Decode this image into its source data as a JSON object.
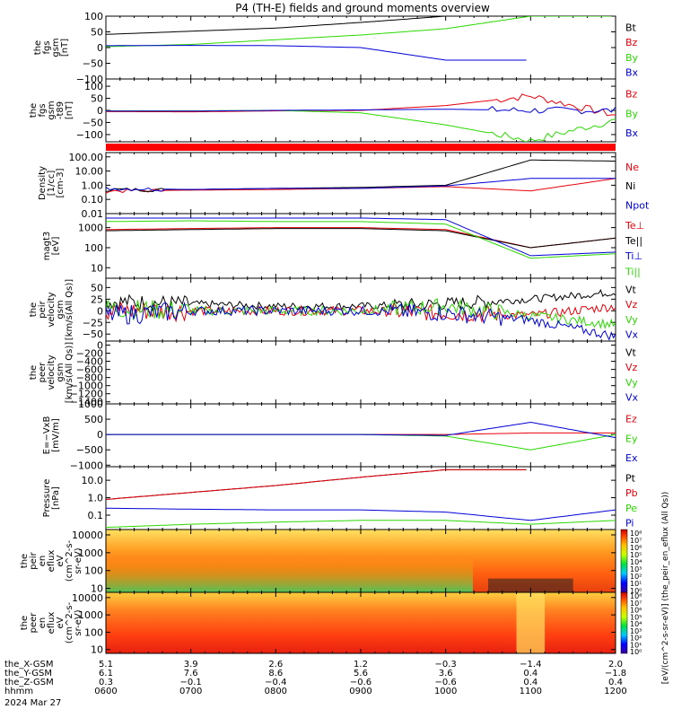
{
  "title": "P4 (TH-E) fields and ground moments overview",
  "colors": {
    "black": "#000000",
    "red": "#e8000b",
    "green": "#2ad900",
    "blue": "#0000d8"
  },
  "panels": [
    {
      "id": "bgsm",
      "ylabel": [
        "the",
        "fgs",
        "gsm",
        "[nT]"
      ],
      "ticks": [
        "100",
        "50",
        "0",
        "−50",
        "−100"
      ],
      "tick_values": [
        100,
        50,
        0,
        -50,
        -100
      ],
      "ylim": [
        -100,
        100
      ],
      "scale": "linear",
      "legend": [
        {
          "label": "Bt",
          "color": "black"
        },
        {
          "label": "Bz",
          "color": "red"
        },
        {
          "label": "By",
          "color": "green"
        },
        {
          "label": "Bx",
          "color": "blue"
        }
      ]
    },
    {
      "id": "bgsm_dc",
      "ylabel": [
        "the",
        "fgs",
        "gsm",
        "-t89",
        "[nT]"
      ],
      "ticks": [
        "100",
        "50",
        "0",
        "−50",
        "−100"
      ],
      "tick_values": [
        100,
        50,
        0,
        -50,
        -100
      ],
      "ylim": [
        -130,
        130
      ],
      "scale": "linear",
      "legend": [
        {
          "label": "Bz",
          "color": "red"
        },
        {
          "label": "By",
          "color": "green"
        },
        {
          "label": "Bx",
          "color": "blue"
        }
      ]
    },
    {
      "id": "density",
      "ylabel": [
        "Density",
        "[1/cc]",
        "[cm-3]"
      ],
      "ticks": [
        "100.00",
        "10.00",
        "1.00",
        "0.10",
        "0.01"
      ],
      "tick_values": [
        100,
        10,
        1,
        0.1,
        0.01
      ],
      "ylim": [
        0.01,
        200
      ],
      "scale": "log",
      "legend": [
        {
          "label": "Ne",
          "color": "red"
        },
        {
          "label": "Ni",
          "color": "black"
        },
        {
          "label": "Npot",
          "color": "blue"
        }
      ]
    },
    {
      "id": "temp",
      "ylabel": [
        "magt3",
        "[eV]"
      ],
      "ticks": [
        "1000",
        "100",
        "10"
      ],
      "tick_values": [
        1000,
        100,
        10
      ],
      "ylim": [
        3,
        5000
      ],
      "scale": "log",
      "legend": [
        {
          "label": "Te⊥",
          "color": "red"
        },
        {
          "label": "Te||",
          "color": "black"
        },
        {
          "label": "Ti⊥",
          "color": "blue"
        },
        {
          "label": "Ti||",
          "color": "green"
        }
      ]
    },
    {
      "id": "vpeir",
      "ylabel": [
        "the",
        "peir",
        "velocity",
        "gsm",
        "[km/s(All Qs)]"
      ],
      "ticks": [
        "50",
        "25",
        "0",
        "−25",
        "−50"
      ],
      "tick_values": [
        50,
        25,
        0,
        -25,
        -50
      ],
      "ylim": [
        -65,
        70
      ],
      "scale": "linear",
      "legend": [
        {
          "label": "Vt",
          "color": "black"
        },
        {
          "label": "Vz",
          "color": "red"
        },
        {
          "label": "Vy",
          "color": "green"
        },
        {
          "label": "Vx",
          "color": "blue"
        }
      ]
    },
    {
      "id": "vpeer",
      "ylabel": [
        "the",
        "peer",
        "velocity",
        "gsm",
        "[km/s(All Qs)]"
      ],
      "ticks": [
        "0",
        "−200",
        "−400",
        "−600",
        "−800",
        "−1000",
        "−1200",
        "−1400"
      ],
      "tick_values": [
        0,
        -200,
        -400,
        -600,
        -800,
        -1000,
        -1200,
        -1400
      ],
      "ylim": [
        -1450,
        100
      ],
      "scale": "linear",
      "legend": [
        {
          "label": "Vt",
          "color": "black"
        },
        {
          "label": "Vz",
          "color": "red"
        },
        {
          "label": "Vy",
          "color": "green"
        },
        {
          "label": "Vx",
          "color": "blue"
        }
      ]
    },
    {
      "id": "efield",
      "ylabel": [
        "E=−VxB",
        "[mV/m]"
      ],
      "ticks": [
        "1000",
        "500",
        "0",
        "−500",
        "−1000"
      ],
      "tick_values": [
        1000,
        500,
        0,
        -500,
        -1000
      ],
      "ylim": [
        -1050,
        1000
      ],
      "scale": "linear",
      "legend": [
        {
          "label": "Ez",
          "color": "red"
        },
        {
          "label": "Ey",
          "color": "green"
        },
        {
          "label": "Ex",
          "color": "blue"
        }
      ]
    },
    {
      "id": "pressure",
      "ylabel": [
        "Pressure",
        "[nPa]"
      ],
      "ticks": [
        "10.0",
        "1.0",
        "0.1"
      ],
      "tick_values": [
        10,
        1,
        0.1
      ],
      "ylim": [
        0.015,
        60
      ],
      "scale": "log",
      "legend": [
        {
          "label": "Pt",
          "color": "black"
        },
        {
          "label": "Pb",
          "color": "red"
        },
        {
          "label": "Pe",
          "color": "green"
        },
        {
          "label": "Pi",
          "color": "blue"
        }
      ]
    },
    {
      "id": "peir_eflux",
      "ylabel": [
        "the",
        "peir",
        "en",
        "eflux",
        "eV",
        "(cm^2-s-",
        "sr-eV)"
      ],
      "ticks": [
        "10000",
        "1000",
        "100",
        "10"
      ],
      "tick_values": [
        10000,
        1000,
        100,
        10
      ],
      "ylim": [
        6,
        20000
      ],
      "scale": "log",
      "legend": []
    },
    {
      "id": "peer_eflux",
      "ylabel": [
        "the",
        "peer",
        "en",
        "eflux",
        "eV",
        "(cm^2-s-",
        "sr-eV)"
      ],
      "ticks": [
        "10000",
        "1000",
        "100",
        "10"
      ],
      "tick_values": [
        10000,
        1000,
        100,
        10
      ],
      "ylim": [
        6,
        20000
      ],
      "scale": "log",
      "legend": []
    }
  ],
  "colorbar": {
    "label": "[eV/(cm^2-s-sr-eV)] (the_peir_en_eflux (All Qs))",
    "ticks": [
      "10⁸",
      "10⁷",
      "10⁶",
      "10⁵",
      "10⁴",
      "10³",
      "10²",
      "10¹",
      "10⁰"
    ],
    "ticks2": [
      "10⁸",
      "10⁷",
      "10⁶",
      "10⁵",
      "10⁴",
      "10³",
      "10²",
      "10¹",
      "10⁰"
    ]
  },
  "xaxis": {
    "rows": [
      {
        "label": "the_X-GSM",
        "values": [
          "5.1",
          "3.9",
          "2.6",
          "1.2",
          "−0.3",
          "−1.4",
          "2.0"
        ]
      },
      {
        "label": "the_Y-GSM",
        "values": [
          "6.1",
          "7.6",
          "8.6",
          "5.6",
          "3.6",
          "0.4",
          "−1.8"
        ]
      },
      {
        "label": "the_Z-GSM",
        "values": [
          "0.3",
          "−0.1",
          "−0.4",
          "−0.6",
          "−0.6",
          "0.4",
          "0.4"
        ]
      },
      {
        "label": "hhmm",
        "values": [
          "0600",
          "0700",
          "0800",
          "0900",
          "1000",
          "1100",
          "1200"
        ]
      }
    ],
    "date": "2024 Mar 27",
    "time_range": [
      600,
      1200
    ]
  },
  "chart_data": {
    "type": "line",
    "title": "P4 (TH-E) fields and ground moments overview",
    "x": [
      "0600",
      "0700",
      "0800",
      "0900",
      "1000",
      "1100",
      "1200"
    ],
    "series": [
      {
        "panel": "bgsm",
        "name": "Bt",
        "values": [
          42,
          52,
          62,
          80,
          100,
          null,
          null
        ]
      },
      {
        "panel": "bgsm",
        "name": "By",
        "values": [
          3,
          10,
          25,
          40,
          60,
          100,
          null
        ]
      },
      {
        "panel": "bgsm",
        "name": "Bx",
        "values": [
          6,
          7,
          6,
          0,
          -40,
          null,
          null
        ]
      },
      {
        "panel": "bgsm_dc",
        "name": "Bz",
        "values": [
          -5,
          -6,
          -2,
          0,
          20,
          60,
          -20
        ]
      },
      {
        "panel": "bgsm_dc",
        "name": "By",
        "values": [
          -2,
          -2,
          0,
          -10,
          -60,
          -125,
          -40
        ]
      },
      {
        "panel": "bgsm_dc",
        "name": "Bx",
        "values": [
          -3,
          -3,
          0,
          2,
          5,
          0,
          0
        ]
      },
      {
        "panel": "density",
        "name": "Ne",
        "values": [
          0.4,
          0.45,
          0.5,
          0.6,
          0.8,
          0.4,
          3
        ]
      },
      {
        "panel": "density",
        "name": "Ni",
        "values": [
          0.5,
          0.5,
          0.6,
          0.7,
          1.0,
          60,
          50
        ]
      },
      {
        "panel": "density",
        "name": "Npot",
        "values": [
          0.6,
          0.5,
          0.6,
          0.6,
          0.9,
          3,
          3
        ]
      },
      {
        "panel": "temp",
        "name": "Te⊥",
        "values": [
          800,
          900,
          1000,
          1000,
          800,
          100,
          300
        ]
      },
      {
        "panel": "temp",
        "name": "Te||",
        "values": [
          700,
          800,
          900,
          900,
          700,
          100,
          300
        ]
      },
      {
        "panel": "temp",
        "name": "Ti⊥",
        "values": [
          3000,
          3000,
          3000,
          3000,
          2500,
          40,
          60
        ]
      },
      {
        "panel": "temp",
        "name": "Ti||",
        "values": [
          2000,
          2200,
          2000,
          2000,
          1500,
          30,
          50
        ]
      },
      {
        "panel": "vpeir",
        "name": "Vt",
        "values": [
          20,
          15,
          10,
          10,
          15,
          25,
          40
        ]
      },
      {
        "panel": "vpeir",
        "name": "Vz",
        "values": [
          0,
          0,
          0,
          0,
          -5,
          -10,
          10
        ]
      },
      {
        "panel": "vpeir",
        "name": "Vy",
        "values": [
          5,
          0,
          0,
          0,
          10,
          -10,
          -30
        ]
      },
      {
        "panel": "vpeir",
        "name": "Vx",
        "values": [
          -10,
          0,
          0,
          0,
          -5,
          -20,
          -55
        ]
      },
      {
        "panel": "efield",
        "name": "Ez",
        "values": [
          0,
          0,
          0,
          0,
          0,
          50,
          50
        ]
      },
      {
        "panel": "efield",
        "name": "Ey",
        "values": [
          0,
          0,
          0,
          0,
          -50,
          -500,
          0
        ]
      },
      {
        "panel": "efield",
        "name": "Ex",
        "values": [
          0,
          0,
          0,
          0,
          -30,
          400,
          -100
        ]
      },
      {
        "panel": "pressure",
        "name": "Pt",
        "values": [
          0.8,
          2,
          5,
          15,
          40,
          null,
          null
        ]
      },
      {
        "panel": "pressure",
        "name": "Pb",
        "values": [
          0.8,
          2,
          5,
          15,
          40,
          null,
          null
        ]
      },
      {
        "panel": "pressure",
        "name": "Pe",
        "values": [
          0.02,
          0.03,
          0.04,
          0.05,
          0.05,
          0.03,
          0.05
        ]
      },
      {
        "panel": "pressure",
        "name": "Pi",
        "values": [
          0.25,
          0.22,
          0.2,
          0.2,
          0.15,
          0.05,
          0.2
        ]
      }
    ]
  }
}
